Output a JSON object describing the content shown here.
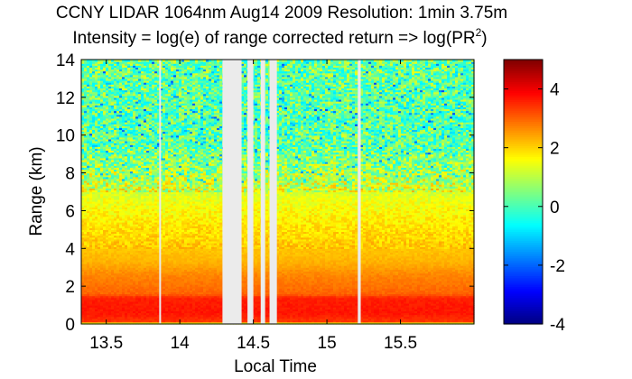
{
  "chart_data": {
    "type": "heatmap",
    "title": "CCNY LIDAR 1064nm Aug14 2009 Resolution: 1min 3.75m",
    "subtitle_main": "Intensity = log(e) of range corrected return => log(PR",
    "subtitle_sup": "2",
    "subtitle_end": ")",
    "xlabel": "Local Time",
    "ylabel": "Range (km)",
    "xlim": [
      13.33,
      16.0
    ],
    "ylim": [
      0,
      14
    ],
    "xticks": [
      13.5,
      14,
      14.5,
      15,
      15.5
    ],
    "xtick_labels": [
      "13.5",
      "14",
      "14.5",
      "15",
      "15.5"
    ],
    "yticks": [
      0,
      2,
      4,
      6,
      8,
      10,
      12,
      14
    ],
    "ytick_labels": [
      "0",
      "2",
      "4",
      "6",
      "8",
      "10",
      "12",
      "14"
    ],
    "colorbar": {
      "colormap": "jet",
      "clim": [
        -4,
        5
      ],
      "ticks": [
        -4,
        -2,
        0,
        2,
        4
      ],
      "tick_labels": [
        "-4",
        "-2",
        "0",
        "2",
        "4"
      ]
    },
    "data_gaps_time": [
      [
        13.86,
        13.87
      ],
      [
        14.29,
        14.42
      ],
      [
        14.46,
        14.5
      ],
      [
        14.55,
        14.58
      ],
      [
        14.61,
        14.66
      ],
      [
        15.21,
        15.23
      ]
    ],
    "intensity_profile": [
      {
        "range_km": 0.0,
        "value": 0.5
      },
      {
        "range_km": 0.15,
        "value": 3.4
      },
      {
        "range_km": 0.6,
        "value": 3.7
      },
      {
        "range_km": 1.4,
        "value": 3.6
      },
      {
        "range_km": 1.6,
        "value": 3.0
      },
      {
        "range_km": 2.6,
        "value": 2.7
      },
      {
        "range_km": 3.3,
        "value": 2.3
      },
      {
        "range_km": 5.0,
        "value": 1.9
      },
      {
        "range_km": 6.5,
        "value": 1.5
      },
      {
        "range_km": 8.0,
        "value": 0.9
      },
      {
        "range_km": 9.5,
        "value": 0.3
      },
      {
        "range_km": 11.0,
        "value": 0.2
      },
      {
        "range_km": 12.5,
        "value": 0.3
      },
      {
        "range_km": 14.0,
        "value": 0.4
      }
    ]
  }
}
